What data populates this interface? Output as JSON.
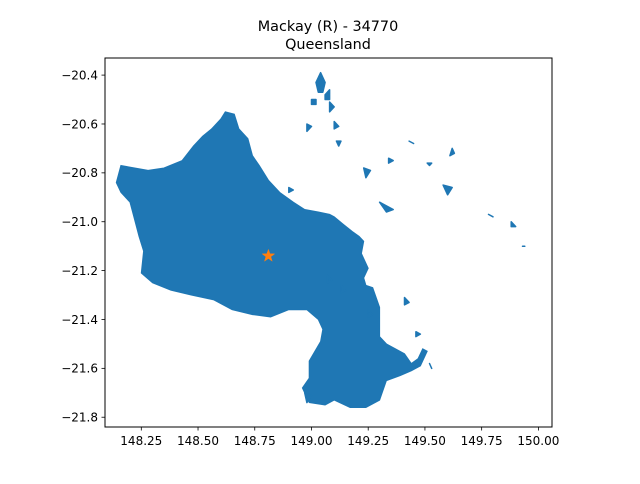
{
  "title": {
    "line1": "Mackay (R) - 34770",
    "line2": "Queensland"
  },
  "axes": {
    "x_ticks": [
      "148.25",
      "148.50",
      "148.75",
      "149.00",
      "149.25",
      "149.50",
      "149.75",
      "150.00"
    ],
    "y_ticks": [
      "−20.4",
      "−20.6",
      "−20.8",
      "−21.0",
      "−21.2",
      "−21.4",
      "−21.6",
      "−21.8"
    ]
  },
  "colors": {
    "region_fill": "#1f77b4",
    "marker": "#ff7f0e"
  },
  "chart_data": {
    "type": "map",
    "xlim": [
      148.09,
      150.06
    ],
    "ylim": [
      -21.84,
      -20.33
    ],
    "x_ticks": [
      148.25,
      148.5,
      148.75,
      149.0,
      149.25,
      149.5,
      149.75,
      150.0
    ],
    "y_ticks": [
      -20.4,
      -20.6,
      -20.8,
      -21.0,
      -21.2,
      -21.4,
      -21.6,
      -21.8
    ],
    "centroid_marker": {
      "lon": 148.81,
      "lat": -21.14,
      "symbol": "star"
    },
    "region": {
      "mainland": [
        [
          148.16,
          -20.77
        ],
        [
          148.28,
          -20.79
        ],
        [
          148.35,
          -20.78
        ],
        [
          148.43,
          -20.75
        ],
        [
          148.48,
          -20.69
        ],
        [
          148.52,
          -20.65
        ],
        [
          148.56,
          -20.62
        ],
        [
          148.6,
          -20.58
        ],
        [
          148.62,
          -20.55
        ],
        [
          148.66,
          -20.56
        ],
        [
          148.68,
          -20.62
        ],
        [
          148.72,
          -20.66
        ],
        [
          148.74,
          -20.73
        ],
        [
          148.77,
          -20.77
        ],
        [
          148.81,
          -20.83
        ],
        [
          148.86,
          -20.88
        ],
        [
          148.92,
          -20.92
        ],
        [
          148.97,
          -20.95
        ],
        [
          149.03,
          -20.96
        ],
        [
          149.08,
          -20.97
        ],
        [
          149.1,
          -20.98
        ],
        [
          149.14,
          -21.01
        ],
        [
          149.18,
          -21.04
        ],
        [
          149.21,
          -21.06
        ],
        [
          149.23,
          -21.08
        ],
        [
          149.22,
          -21.13
        ],
        [
          149.25,
          -21.19
        ],
        [
          149.23,
          -21.23
        ],
        [
          149.24,
          -21.26
        ],
        [
          149.27,
          -21.27
        ],
        [
          149.3,
          -21.35
        ],
        [
          149.3,
          -21.44
        ],
        [
          149.3,
          -21.47
        ],
        [
          149.33,
          -21.5
        ],
        [
          149.37,
          -21.52
        ],
        [
          149.41,
          -21.54
        ],
        [
          149.44,
          -21.58
        ],
        [
          149.47,
          -21.56
        ],
        [
          149.49,
          -21.52
        ],
        [
          149.51,
          -21.53
        ],
        [
          149.48,
          -21.59
        ],
        [
          149.44,
          -21.61
        ],
        [
          149.39,
          -21.63
        ],
        [
          149.33,
          -21.65
        ],
        [
          149.3,
          -21.73
        ],
        [
          149.24,
          -21.76
        ],
        [
          149.17,
          -21.76
        ],
        [
          149.1,
          -21.73
        ],
        [
          149.06,
          -21.75
        ],
        [
          148.99,
          -21.74
        ],
        [
          148.96,
          -21.68
        ],
        [
          148.99,
          -21.64
        ],
        [
          148.99,
          -21.57
        ],
        [
          149.04,
          -21.49
        ],
        [
          149.05,
          -21.44
        ],
        [
          149.03,
          -21.4
        ],
        [
          148.98,
          -21.36
        ],
        [
          148.9,
          -21.36
        ],
        [
          148.82,
          -21.39
        ],
        [
          148.74,
          -21.38
        ],
        [
          148.65,
          -21.36
        ],
        [
          148.57,
          -21.32
        ],
        [
          148.47,
          -21.3
        ],
        [
          148.38,
          -21.28
        ],
        [
          148.3,
          -21.25
        ],
        [
          148.25,
          -21.21
        ],
        [
          148.26,
          -21.12
        ],
        [
          148.24,
          -21.06
        ],
        [
          148.22,
          -20.99
        ],
        [
          148.2,
          -20.92
        ],
        [
          148.16,
          -20.88
        ],
        [
          148.14,
          -20.84
        ]
      ],
      "islands": [
        [
          [
            149.02,
            -20.43
          ],
          [
            149.04,
            -20.39
          ],
          [
            149.06,
            -20.43
          ],
          [
            149.05,
            -20.47
          ],
          [
            149.03,
            -20.47
          ]
        ],
        [
          [
            149.06,
            -20.48
          ],
          [
            149.08,
            -20.46
          ],
          [
            149.08,
            -20.5
          ],
          [
            149.06,
            -20.5
          ]
        ],
        [
          [
            149.0,
            -20.5
          ],
          [
            149.02,
            -20.5
          ],
          [
            149.02,
            -20.52
          ],
          [
            149.0,
            -20.52
          ]
        ],
        [
          [
            149.08,
            -20.51
          ],
          [
            149.1,
            -20.53
          ],
          [
            149.08,
            -20.55
          ]
        ],
        [
          [
            149.1,
            -20.59
          ],
          [
            149.12,
            -20.61
          ],
          [
            149.1,
            -20.62
          ]
        ],
        [
          [
            148.98,
            -20.6
          ],
          [
            149.0,
            -20.61
          ],
          [
            148.98,
            -20.63
          ]
        ],
        [
          [
            149.11,
            -20.67
          ],
          [
            149.13,
            -20.67
          ],
          [
            149.12,
            -20.69
          ]
        ],
        [
          [
            149.23,
            -20.78
          ],
          [
            149.26,
            -20.79
          ],
          [
            149.24,
            -20.82
          ]
        ],
        [
          [
            149.34,
            -20.74
          ],
          [
            149.36,
            -20.75
          ],
          [
            149.34,
            -20.76
          ]
        ],
        [
          [
            149.3,
            -20.92
          ],
          [
            149.36,
            -20.95
          ],
          [
            149.33,
            -20.96
          ]
        ],
        [
          [
            149.43,
            -20.67
          ],
          [
            149.45,
            -20.68
          ]
        ],
        [
          [
            149.58,
            -20.85
          ],
          [
            149.62,
            -20.86
          ],
          [
            149.6,
            -20.89
          ]
        ],
        [
          [
            149.62,
            -20.7
          ],
          [
            149.63,
            -20.72
          ],
          [
            149.61,
            -20.73
          ]
        ],
        [
          [
            149.51,
            -20.76
          ],
          [
            149.53,
            -20.76
          ],
          [
            149.52,
            -20.77
          ]
        ],
        [
          [
            149.88,
            -21.0
          ],
          [
            149.9,
            -21.02
          ],
          [
            149.88,
            -21.02
          ]
        ],
        [
          [
            149.78,
            -20.97
          ],
          [
            149.8,
            -20.98
          ]
        ],
        [
          [
            149.93,
            -21.1
          ],
          [
            149.94,
            -21.1
          ]
        ],
        [
          [
            149.41,
            -21.31
          ],
          [
            149.43,
            -21.33
          ],
          [
            149.41,
            -21.34
          ]
        ],
        [
          [
            149.46,
            -21.45
          ],
          [
            149.48,
            -21.46
          ],
          [
            149.46,
            -21.47
          ]
        ],
        [
          [
            149.52,
            -21.58
          ],
          [
            149.53,
            -21.6
          ]
        ],
        [
          [
            149.07,
            -21.22
          ],
          [
            149.09,
            -21.24
          ],
          [
            149.07,
            -21.25
          ]
        ],
        [
          [
            149.13,
            -21.26
          ],
          [
            149.15,
            -21.28
          ],
          [
            149.13,
            -21.29
          ]
        ],
        [
          [
            149.25,
            -21.36
          ],
          [
            149.27,
            -21.38
          ],
          [
            149.25,
            -21.39
          ]
        ],
        [
          [
            148.9,
            -20.86
          ],
          [
            148.92,
            -20.87
          ],
          [
            148.9,
            -20.88
          ]
        ],
        [
          [
            149.0,
            -21.71
          ],
          [
            148.98,
            -21.74
          ],
          [
            148.97,
            -21.7
          ]
        ]
      ]
    }
  }
}
